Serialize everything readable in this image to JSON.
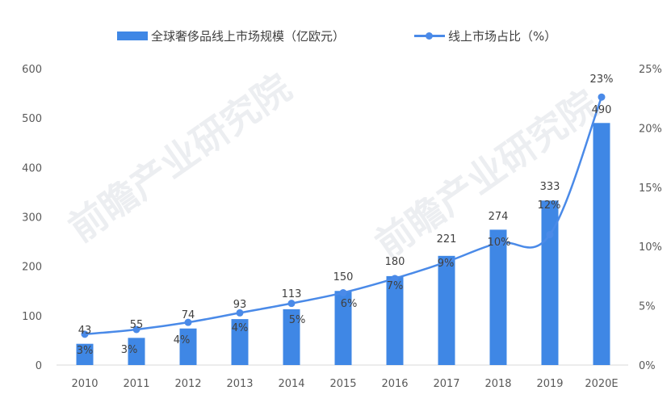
{
  "legend": {
    "bar_label": "全球奢侈品线上市场规模（亿欧元）",
    "line_label": "线上市场占比（%）"
  },
  "watermark": "前瞻产业研究院",
  "colors": {
    "bar": "#3f87e5",
    "line": "#4a8ae8",
    "axis_text": "#595959",
    "label_text": "#404040",
    "baseline": "#d9d9d9"
  },
  "chart_data": {
    "type": "bar+line",
    "title": "",
    "categories": [
      "2010",
      "2011",
      "2012",
      "2013",
      "2014",
      "2015",
      "2016",
      "2017",
      "2018",
      "2019",
      "2020E"
    ],
    "series": [
      {
        "name": "全球奢侈品线上市场规模（亿欧元）",
        "type": "bar",
        "axis": "left",
        "values": [
          43,
          55,
          74,
          93,
          113,
          150,
          180,
          221,
          274,
          333,
          490
        ]
      },
      {
        "name": "线上市场占比（%）",
        "type": "line",
        "axis": "right",
        "values": [
          3,
          3,
          4,
          4,
          5,
          6,
          7,
          9,
          10,
          12,
          23
        ],
        "labels": [
          "3%",
          "3%",
          "4%",
          "4%",
          "5%",
          "6%",
          "7%",
          "9%",
          "10%",
          "12%",
          "23%"
        ]
      }
    ],
    "left_axis": {
      "ylim": [
        0,
        600
      ],
      "ticks": [
        "0",
        "100",
        "200",
        "300",
        "400",
        "500",
        "600"
      ]
    },
    "right_axis": {
      "ylim": [
        0,
        25
      ],
      "ticks": [
        "0%",
        "5%",
        "10%",
        "15%",
        "20%",
        "25%"
      ]
    },
    "xlabel": "",
    "ylabel": "",
    "grid": false,
    "legend_position": "top"
  }
}
